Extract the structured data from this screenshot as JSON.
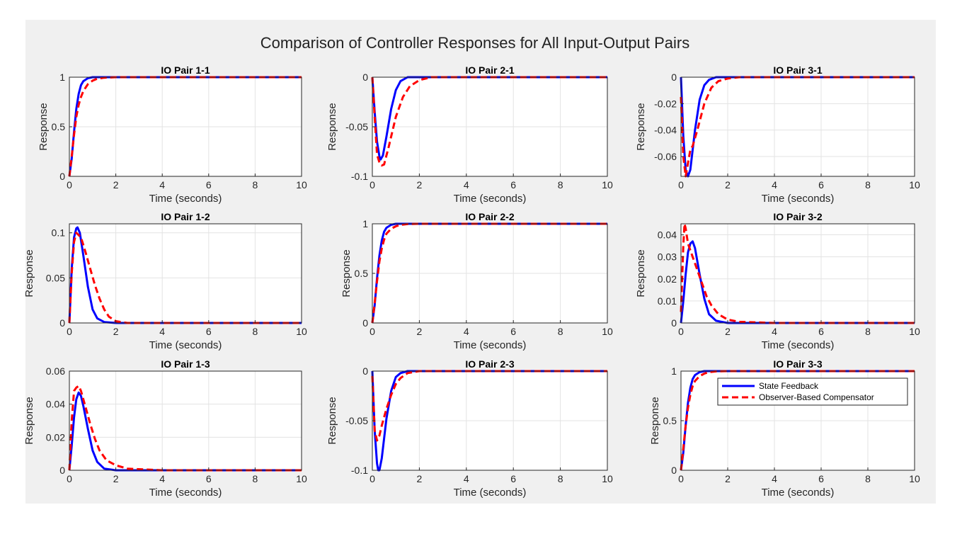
{
  "figure": {
    "title": "Comparison of Controller Responses for All Input-Output Pairs",
    "legend_entries": [
      {
        "label": "State Feedback",
        "color": "#0000ff",
        "style": "solid"
      },
      {
        "label": "Observer-Based Compensator",
        "color": "#ff0000",
        "style": "dashed"
      }
    ],
    "background": "#f0f0f0",
    "grid": true
  },
  "chart_data": [
    {
      "type": "line",
      "title": "IO Pair 1-1",
      "xlabel": "Time (seconds)",
      "ylabel": "Response",
      "xlim": [
        0,
        10
      ],
      "ylim": [
        0,
        1
      ],
      "xticks": [
        "0",
        "2",
        "4",
        "6",
        "8",
        "10"
      ],
      "xtick_values": [
        0,
        2,
        4,
        6,
        8,
        10
      ],
      "yticks": [
        "0",
        "0.5",
        "1"
      ],
      "ytick_values": [
        0,
        0.5,
        1
      ],
      "series": [
        {
          "name": "State Feedback",
          "x": [
            0,
            0.1,
            0.2,
            0.3,
            0.4,
            0.5,
            0.6,
            0.8,
            1,
            1.2,
            2,
            4,
            6,
            8,
            10
          ],
          "y": [
            0,
            0.18,
            0.45,
            0.68,
            0.83,
            0.92,
            0.96,
            0.99,
            1,
            1,
            1,
            1,
            1,
            1,
            1
          ]
        },
        {
          "name": "Observer-Based Compensator",
          "x": [
            0,
            0.1,
            0.2,
            0.3,
            0.4,
            0.5,
            0.6,
            0.8,
            1,
            1.2,
            1.5,
            2,
            4,
            6,
            8,
            10
          ],
          "y": [
            0,
            0.2,
            0.42,
            0.6,
            0.72,
            0.8,
            0.86,
            0.93,
            0.965,
            0.985,
            0.995,
            1,
            1,
            1,
            1,
            1
          ]
        }
      ]
    },
    {
      "type": "line",
      "title": "IO Pair 2-1",
      "xlabel": "Time (seconds)",
      "ylabel": "Response",
      "xlim": [
        0,
        10
      ],
      "ylim": [
        -0.1,
        0
      ],
      "xticks": [
        "0",
        "2",
        "4",
        "6",
        "8",
        "10"
      ],
      "xtick_values": [
        0,
        2,
        4,
        6,
        8,
        10
      ],
      "yticks": [
        "-0.1",
        "-0.05",
        "0"
      ],
      "ytick_values": [
        -0.1,
        -0.05,
        0
      ],
      "series": [
        {
          "name": "State Feedback",
          "x": [
            0,
            0.1,
            0.2,
            0.3,
            0.35,
            0.45,
            0.6,
            0.8,
            1,
            1.2,
            1.5,
            2,
            4,
            6,
            8,
            10
          ],
          "y": [
            0,
            -0.035,
            -0.065,
            -0.08,
            -0.083,
            -0.079,
            -0.06,
            -0.032,
            -0.013,
            -0.004,
            0,
            0,
            0,
            0,
            0,
            0
          ]
        },
        {
          "name": "Observer-Based Compensator",
          "x": [
            0,
            0.1,
            0.2,
            0.3,
            0.4,
            0.5,
            0.7,
            1,
            1.3,
            1.6,
            2,
            2.5,
            4,
            6,
            8,
            10
          ],
          "y": [
            0,
            -0.04,
            -0.078,
            -0.086,
            -0.089,
            -0.088,
            -0.07,
            -0.04,
            -0.02,
            -0.009,
            -0.003,
            0,
            0,
            0,
            0,
            0
          ]
        }
      ]
    },
    {
      "type": "line",
      "title": "IO Pair 3-1",
      "xlabel": "Time (seconds)",
      "ylabel": "Response",
      "xlim": [
        0,
        10
      ],
      "ylim": [
        -0.075,
        0
      ],
      "xticks": [
        "0",
        "2",
        "4",
        "6",
        "8",
        "10"
      ],
      "xtick_values": [
        0,
        2,
        4,
        6,
        8,
        10
      ],
      "yticks": [
        "-0.06",
        "-0.04",
        "-0.02",
        "0"
      ],
      "ytick_values": [
        -0.06,
        -0.04,
        -0.02,
        0
      ],
      "series": [
        {
          "name": "State Feedback",
          "x": [
            0,
            0.1,
            0.2,
            0.3,
            0.4,
            0.5,
            0.6,
            0.8,
            1,
            1.2,
            1.5,
            2,
            4,
            6,
            8,
            10
          ],
          "y": [
            0,
            -0.045,
            -0.07,
            -0.075,
            -0.07,
            -0.055,
            -0.04,
            -0.017,
            -0.006,
            -0.002,
            0,
            0,
            0,
            0,
            0,
            0
          ]
        },
        {
          "name": "Observer-Based Compensator",
          "x": [
            0,
            0.1,
            0.2,
            0.3,
            0.4,
            0.5,
            0.7,
            1,
            1.3,
            1.6,
            2,
            2.5,
            4,
            6,
            8,
            10
          ],
          "y": [
            -0.015,
            -0.06,
            -0.075,
            -0.065,
            -0.055,
            -0.052,
            -0.04,
            -0.02,
            -0.008,
            -0.003,
            -0.001,
            0,
            0,
            0,
            0,
            0
          ]
        }
      ]
    },
    {
      "type": "line",
      "title": "IO Pair 1-2",
      "xlabel": "Time (seconds)",
      "ylabel": "Response",
      "xlim": [
        0,
        10
      ],
      "ylim": [
        0,
        0.11
      ],
      "xticks": [
        "0",
        "2",
        "4",
        "6",
        "8",
        "10"
      ],
      "xtick_values": [
        0,
        2,
        4,
        6,
        8,
        10
      ],
      "yticks": [
        "0",
        "0.05",
        "0.1"
      ],
      "ytick_values": [
        0,
        0.05,
        0.1
      ],
      "series": [
        {
          "name": "State Feedback",
          "x": [
            0,
            0.1,
            0.2,
            0.3,
            0.35,
            0.45,
            0.6,
            0.8,
            1,
            1.2,
            1.5,
            2,
            4,
            6,
            8,
            10
          ],
          "y": [
            0,
            0.06,
            0.095,
            0.105,
            0.106,
            0.1,
            0.075,
            0.04,
            0.015,
            0.005,
            0.001,
            0,
            0,
            0,
            0,
            0
          ]
        },
        {
          "name": "Observer-Based Compensator",
          "x": [
            0,
            0.1,
            0.2,
            0.3,
            0.5,
            0.7,
            0.9,
            1.1,
            1.3,
            1.5,
            1.7,
            2,
            2.5,
            4,
            6,
            8,
            10
          ],
          "y": [
            0,
            0.055,
            0.09,
            0.1,
            0.095,
            0.078,
            0.06,
            0.042,
            0.027,
            0.015,
            0.007,
            0.002,
            0,
            0,
            0,
            0,
            0
          ]
        }
      ]
    },
    {
      "type": "line",
      "title": "IO Pair 2-2",
      "xlabel": "Time (seconds)",
      "ylabel": "Response",
      "xlim": [
        0,
        10
      ],
      "ylim": [
        0,
        1
      ],
      "xticks": [
        "0",
        "2",
        "4",
        "6",
        "8",
        "10"
      ],
      "xtick_values": [
        0,
        2,
        4,
        6,
        8,
        10
      ],
      "yticks": [
        "0",
        "0.5",
        "1"
      ],
      "ytick_values": [
        0,
        0.5,
        1
      ],
      "series": [
        {
          "name": "State Feedback",
          "x": [
            0,
            0.1,
            0.2,
            0.3,
            0.4,
            0.5,
            0.6,
            0.8,
            1,
            1.2,
            2,
            4,
            6,
            8,
            10
          ],
          "y": [
            0,
            0.18,
            0.45,
            0.68,
            0.83,
            0.92,
            0.96,
            0.99,
            1,
            1,
            1,
            1,
            1,
            1,
            1
          ]
        },
        {
          "name": "Observer-Based Compensator",
          "x": [
            0,
            0.1,
            0.2,
            0.3,
            0.4,
            0.5,
            0.6,
            0.8,
            1,
            1.2,
            1.5,
            2,
            4,
            6,
            8,
            10
          ],
          "y": [
            0,
            0.2,
            0.42,
            0.62,
            0.75,
            0.84,
            0.9,
            0.95,
            0.975,
            0.99,
            0.997,
            1,
            1,
            1,
            1,
            1
          ]
        }
      ]
    },
    {
      "type": "line",
      "title": "IO Pair 3-2",
      "xlabel": "Time (seconds)",
      "ylabel": "Response",
      "xlim": [
        0,
        10
      ],
      "ylim": [
        0,
        0.045
      ],
      "xticks": [
        "0",
        "2",
        "4",
        "6",
        "8",
        "10"
      ],
      "xtick_values": [
        0,
        2,
        4,
        6,
        8,
        10
      ],
      "yticks": [
        "0",
        "0.01",
        "0.02",
        "0.03",
        "0.04"
      ],
      "ytick_values": [
        0,
        0.01,
        0.02,
        0.03,
        0.04
      ],
      "series": [
        {
          "name": "State Feedback",
          "x": [
            0,
            0.1,
            0.2,
            0.3,
            0.4,
            0.5,
            0.6,
            0.8,
            1,
            1.2,
            1.5,
            2,
            4,
            6,
            8,
            10
          ],
          "y": [
            0,
            0.01,
            0.022,
            0.032,
            0.036,
            0.037,
            0.034,
            0.022,
            0.011,
            0.004,
            0.001,
            0,
            0,
            0,
            0,
            0
          ]
        },
        {
          "name": "Observer-Based Compensator",
          "x": [
            0,
            0.1,
            0.15,
            0.2,
            0.3,
            0.5,
            0.7,
            0.9,
            1.1,
            1.3,
            1.6,
            2,
            2.5,
            4,
            6,
            8,
            10
          ],
          "y": [
            0.005,
            0.035,
            0.045,
            0.043,
            0.036,
            0.03,
            0.024,
            0.018,
            0.012,
            0.008,
            0.004,
            0.0015,
            0.0005,
            0,
            0,
            0,
            0
          ]
        }
      ]
    },
    {
      "type": "line",
      "title": "IO Pair 1-3",
      "xlabel": "Time (seconds)",
      "ylabel": "Response",
      "xlim": [
        0,
        10
      ],
      "ylim": [
        0,
        0.06
      ],
      "xticks": [
        "0",
        "2",
        "4",
        "6",
        "8",
        "10"
      ],
      "xtick_values": [
        0,
        2,
        4,
        6,
        8,
        10
      ],
      "yticks": [
        "0",
        "0.02",
        "0.04",
        "0.06"
      ],
      "ytick_values": [
        0,
        0.02,
        0.04,
        0.06
      ],
      "series": [
        {
          "name": "State Feedback",
          "x": [
            0,
            0.1,
            0.2,
            0.3,
            0.4,
            0.5,
            0.6,
            0.8,
            1,
            1.2,
            1.5,
            2,
            4,
            6,
            8,
            10
          ],
          "y": [
            0,
            0.015,
            0.032,
            0.043,
            0.047,
            0.045,
            0.039,
            0.025,
            0.012,
            0.005,
            0.001,
            0,
            0,
            0,
            0,
            0
          ]
        },
        {
          "name": "Observer-Based Compensator",
          "x": [
            0,
            0.1,
            0.2,
            0.3,
            0.4,
            0.5,
            0.7,
            0.9,
            1.1,
            1.3,
            1.6,
            2,
            2.5,
            4,
            6,
            8,
            10
          ],
          "y": [
            0,
            0.03,
            0.048,
            0.05,
            0.051,
            0.048,
            0.038,
            0.028,
            0.019,
            0.012,
            0.006,
            0.003,
            0.001,
            0,
            0,
            0,
            0
          ]
        }
      ]
    },
    {
      "type": "line",
      "title": "IO Pair 2-3",
      "xlabel": "Time (seconds)",
      "ylabel": "Response",
      "xlim": [
        0,
        10
      ],
      "ylim": [
        -0.1,
        0
      ],
      "xticks": [
        "0",
        "2",
        "4",
        "6",
        "8",
        "10"
      ],
      "xtick_values": [
        0,
        2,
        4,
        6,
        8,
        10
      ],
      "yticks": [
        "-0.1",
        "-0.05",
        "0"
      ],
      "ytick_values": [
        -0.1,
        -0.05,
        0
      ],
      "series": [
        {
          "name": "State Feedback",
          "x": [
            0,
            0.1,
            0.2,
            0.25,
            0.3,
            0.4,
            0.5,
            0.6,
            0.8,
            1,
            1.2,
            1.5,
            2,
            4,
            6,
            8,
            10
          ],
          "y": [
            0,
            -0.06,
            -0.093,
            -0.1,
            -0.1,
            -0.088,
            -0.068,
            -0.048,
            -0.02,
            -0.006,
            -0.002,
            0,
            0,
            0,
            0,
            0,
            0
          ]
        },
        {
          "name": "Observer-Based Compensator",
          "x": [
            0,
            0.1,
            0.2,
            0.3,
            0.4,
            0.6,
            0.8,
            1,
            1.2,
            1.5,
            2,
            2.5,
            4,
            6,
            8,
            10
          ],
          "y": [
            -0.005,
            -0.06,
            -0.07,
            -0.065,
            -0.055,
            -0.038,
            -0.024,
            -0.013,
            -0.007,
            -0.002,
            0,
            0,
            0,
            0,
            0,
            0
          ]
        }
      ]
    },
    {
      "type": "line",
      "title": "IO Pair 3-3",
      "xlabel": "Time (seconds)",
      "ylabel": "Response",
      "xlim": [
        0,
        10
      ],
      "ylim": [
        0,
        1
      ],
      "xticks": [
        "0",
        "2",
        "4",
        "6",
        "8",
        "10"
      ],
      "xtick_values": [
        0,
        2,
        4,
        6,
        8,
        10
      ],
      "yticks": [
        "0",
        "0.5",
        "1"
      ],
      "ytick_values": [
        0,
        0.5,
        1
      ],
      "legend": "top-right",
      "series": [
        {
          "name": "State Feedback",
          "x": [
            0,
            0.1,
            0.2,
            0.3,
            0.4,
            0.5,
            0.6,
            0.8,
            1,
            1.2,
            2,
            4,
            6,
            8,
            10
          ],
          "y": [
            0,
            0.18,
            0.45,
            0.68,
            0.83,
            0.92,
            0.96,
            0.99,
            1,
            1,
            1,
            1,
            1,
            1,
            1
          ]
        },
        {
          "name": "Observer-Based Compensator",
          "x": [
            0,
            0.1,
            0.2,
            0.3,
            0.4,
            0.5,
            0.6,
            0.8,
            1,
            1.2,
            1.5,
            2,
            4,
            6,
            8,
            10
          ],
          "y": [
            0,
            0.22,
            0.45,
            0.63,
            0.76,
            0.85,
            0.9,
            0.95,
            0.975,
            0.99,
            0.997,
            1,
            1,
            1,
            1,
            1
          ]
        }
      ]
    }
  ]
}
